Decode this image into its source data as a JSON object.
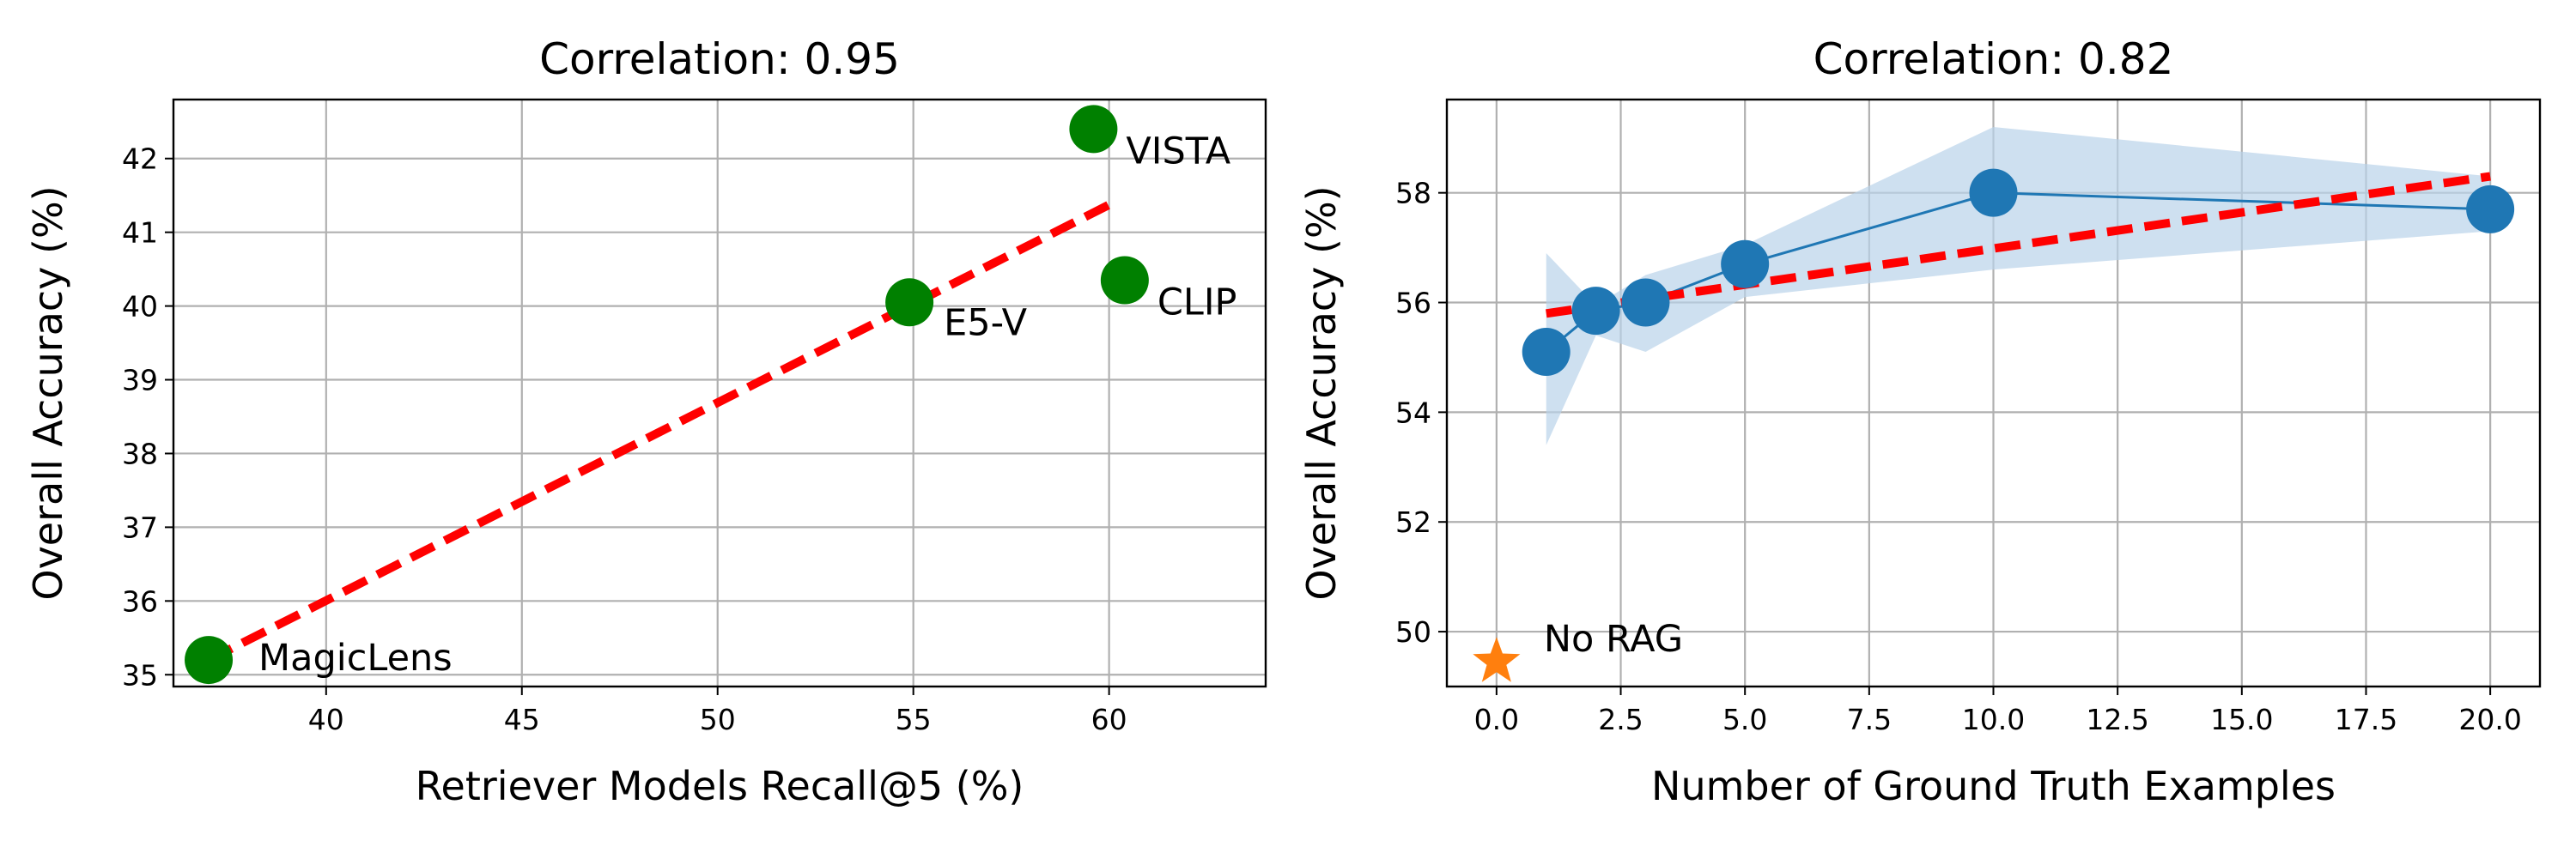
{
  "chart_data": [
    {
      "type": "scatter",
      "title": "Correlation: 0.95",
      "xlabel": "Retriever Models Recall@5 (%)",
      "ylabel": "Overall Accuracy (%)",
      "xlim": [
        36.1,
        64.0
      ],
      "ylim": [
        34.84,
        42.8
      ],
      "xticks": [
        40,
        45,
        50,
        55,
        60
      ],
      "yticks": [
        35,
        36,
        37,
        38,
        39,
        40,
        41,
        42
      ],
      "grid": true,
      "points": [
        {
          "label": "MagicLens",
          "x": 37.0,
          "y": 35.2
        },
        {
          "label": "E5-V",
          "x": 54.9,
          "y": 40.05
        },
        {
          "label": "VISTA",
          "x": 59.6,
          "y": 42.4
        },
        {
          "label": "CLIP",
          "x": 60.4,
          "y": 40.35
        }
      ],
      "point_color": "#008000",
      "trend_line": {
        "x": [
          37.0,
          60.1
        ],
        "y": [
          35.2,
          41.4
        ],
        "color": "#ff0000",
        "style": "dashed"
      }
    },
    {
      "type": "line",
      "title": "Correlation: 0.82",
      "xlabel": "Number of Ground Truth Examples",
      "ylabel": "Overall Accuracy (%)",
      "xlim": [
        -1.0,
        21.0
      ],
      "ylim": [
        49.0,
        59.7
      ],
      "xticks": [
        "0.0",
        "2.5",
        "5.0",
        "7.5",
        "10.0",
        "12.5",
        "15.0",
        "17.5",
        "20.0"
      ],
      "yticks": [
        50,
        52,
        54,
        56,
        58
      ],
      "grid": true,
      "series": [
        {
          "x": [
            1,
            2,
            3,
            5,
            10,
            20
          ],
          "y": [
            55.1,
            55.85,
            56.0,
            56.7,
            58.0,
            57.7
          ],
          "color": "#1f77b4"
        }
      ],
      "confidence_band": {
        "x": [
          1,
          2,
          3,
          5,
          10,
          20
        ],
        "upper": [
          56.9,
          55.95,
          56.5,
          57.05,
          59.2,
          58.3
        ],
        "lower": [
          53.4,
          55.4,
          55.1,
          56.1,
          56.6,
          57.3
        ],
        "color": "#b9d3ea"
      },
      "trend_line": {
        "x": [
          1,
          20
        ],
        "y": [
          55.8,
          58.3
        ],
        "color": "#ff0000",
        "style": "dashed"
      },
      "baseline": {
        "label": "No RAG",
        "x": 0,
        "y": 49.45,
        "marker": "star",
        "color": "#ff7f0e"
      }
    }
  ]
}
